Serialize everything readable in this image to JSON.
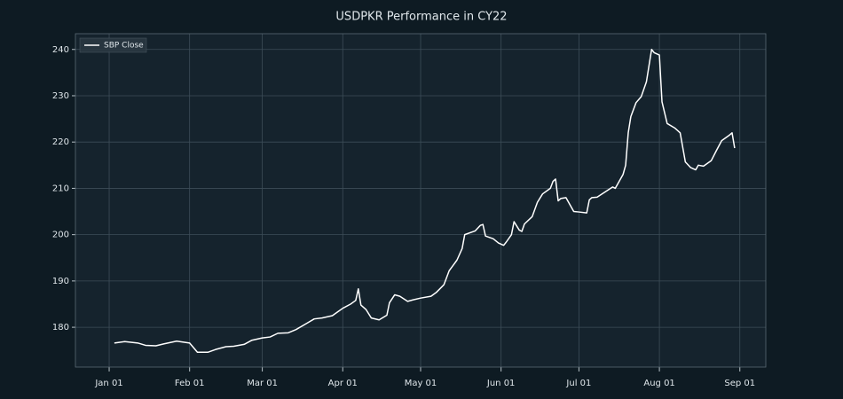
{
  "chart_data": {
    "type": "line",
    "title": "USDPKR Performance in CY22",
    "legend": "upper left",
    "grid": true,
    "xlim": [
      "Dec 19",
      "Sep 11"
    ],
    "xticks": [
      "Jan 01",
      "Feb 01",
      "Mar 01",
      "Apr 01",
      "May 01",
      "Jun 01",
      "Jul 01",
      "Aug 01",
      "Sep 01"
    ],
    "ylim": [
      171.4,
      243.4
    ],
    "yticks": [
      180,
      190,
      200,
      210,
      220,
      230,
      240
    ],
    "x": [
      "Jan 03",
      "Jan 07",
      "Jan 12",
      "Jan 15",
      "Jan 19",
      "Jan 22",
      "Jan 27",
      "Feb 01",
      "Feb 04",
      "Feb 08",
      "Feb 11",
      "Feb 15",
      "Feb 18",
      "Feb 22",
      "Feb 25",
      "Mar 01",
      "Mar 04",
      "Mar 07",
      "Mar 11",
      "Mar 14",
      "Mar 18",
      "Mar 21",
      "Mar 24",
      "Mar 28",
      "Apr 01",
      "Apr 04",
      "Apr 06",
      "Apr 07",
      "Apr 08",
      "Apr 10",
      "Apr 12",
      "Apr 15",
      "Apr 18",
      "Apr 19",
      "Apr 21",
      "Apr 23",
      "Apr 26",
      "Apr 28",
      "May 01",
      "May 05",
      "May 07",
      "May 10",
      "May 12",
      "May 15",
      "May 17",
      "May 18",
      "May 22",
      "May 24",
      "May 25",
      "May 26",
      "May 29",
      "May 31",
      "Jun 02",
      "Jun 03",
      "Jun 05",
      "Jun 06",
      "Jun 08",
      "Jun 09",
      "Jun 10",
      "Jun 13",
      "Jun 15",
      "Jun 17",
      "Jun 20",
      "Jun 21",
      "Jun 22",
      "Jun 23",
      "Jun 24",
      "Jun 26",
      "Jun 29",
      "Jul 01",
      "Jul 04",
      "Jul 05",
      "Jul 06",
      "Jul 08",
      "Jul 11",
      "Jul 14",
      "Jul 15",
      "Jul 18",
      "Jul 19",
      "Jul 20",
      "Jul 21",
      "Jul 23",
      "Jul 25",
      "Jul 27",
      "Jul 28",
      "Jul 29",
      "Jul 30",
      "Aug 01",
      "Aug 02",
      "Aug 04",
      "Aug 07",
      "Aug 09",
      "Aug 11",
      "Aug 13",
      "Aug 15",
      "Aug 16",
      "Aug 18",
      "Aug 21",
      "Aug 23",
      "Aug 25",
      "Aug 28",
      "Aug 29",
      "Aug 30"
    ],
    "series": [
      {
        "name": "SBP Close",
        "color": "#ffffff",
        "values": [
          176.6,
          176.9,
          176.6,
          176.1,
          176.0,
          176.4,
          177.0,
          176.6,
          174.6,
          174.6,
          175.2,
          175.8,
          175.9,
          176.3,
          177.2,
          177.7,
          177.9,
          178.7,
          178.8,
          179.5,
          180.8,
          181.8,
          182.0,
          182.5,
          184.1,
          185.0,
          185.8,
          188.3,
          184.8,
          183.8,
          182.0,
          181.6,
          182.6,
          185.3,
          187.0,
          186.7,
          185.6,
          185.9,
          186.3,
          186.7,
          187.5,
          189.2,
          192.2,
          194.5,
          197.0,
          200.0,
          200.8,
          202.0,
          202.2,
          199.7,
          199.1,
          198.2,
          197.7,
          198.4,
          200.0,
          202.8,
          201.0,
          200.7,
          202.3,
          203.9,
          207.0,
          208.8,
          210.0,
          211.5,
          212.0,
          207.3,
          207.8,
          208.0,
          205.0,
          204.9,
          204.7,
          207.5,
          208.0,
          208.1,
          209.2,
          210.3,
          210.0,
          213.0,
          215.0,
          222.0,
          225.5,
          228.5,
          229.8,
          233.0,
          236.5,
          240.0,
          239.3,
          238.8,
          228.7,
          224.0,
          223.0,
          222.0,
          215.7,
          214.5,
          214.0,
          215.0,
          214.8,
          216.0,
          218.2,
          220.3,
          221.5,
          222.0,
          218.7
        ]
      }
    ]
  }
}
